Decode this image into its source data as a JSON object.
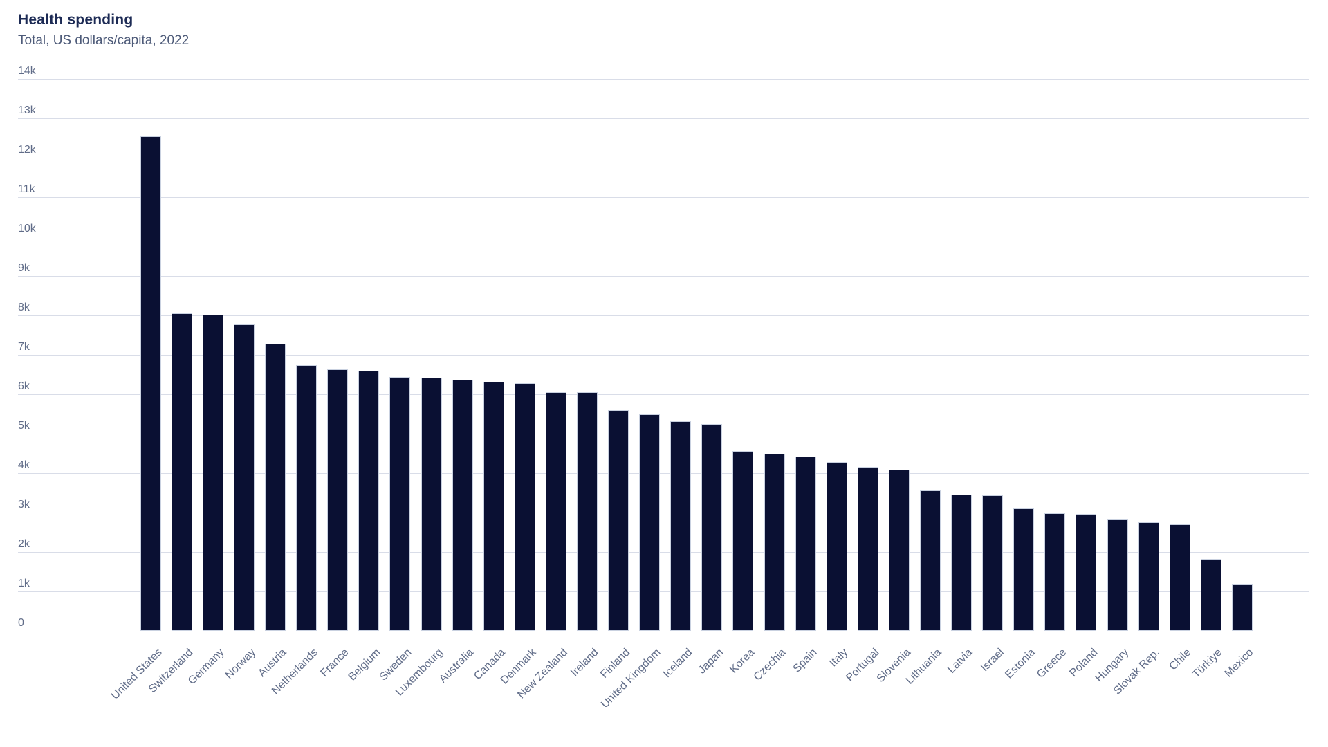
{
  "chart_data": {
    "type": "bar",
    "title": "Health spending",
    "subtitle": "Total, US dollars/capita, 2022",
    "xlabel": "",
    "ylabel": "US dollars/capita",
    "ylim": [
      0,
      14000
    ],
    "grid": true,
    "legend": false,
    "y_tick_labels": [
      "0",
      "1k",
      "2k",
      "3k",
      "4k",
      "5k",
      "6k",
      "7k",
      "8k",
      "9k",
      "10k",
      "11k",
      "12k",
      "13k",
      "14k"
    ],
    "categories": [
      "United States",
      "Switzerland",
      "Germany",
      "Norway",
      "Austria",
      "Netherlands",
      "France",
      "Belgium",
      "Sweden",
      "Luxembourg",
      "Australia",
      "Canada",
      "Denmark",
      "New Zealand",
      "Ireland",
      "Finland",
      "United Kingdom",
      "Iceland",
      "Japan",
      "Korea",
      "Czechia",
      "Spain",
      "Italy",
      "Portugal",
      "Slovenia",
      "Lithuania",
      "Latvia",
      "Israel",
      "Estonia",
      "Greece",
      "Poland",
      "Hungary",
      "Slovak Rep.",
      "Chile",
      "Türkiye",
      "Mexico"
    ],
    "values": [
      12540,
      8050,
      8010,
      7770,
      7280,
      6730,
      6630,
      6600,
      6440,
      6430,
      6370,
      6320,
      6280,
      6060,
      6050,
      5600,
      5490,
      5310,
      5250,
      4570,
      4500,
      4430,
      4290,
      4160,
      4090,
      3570,
      3450,
      3440,
      3110,
      2990,
      2960,
      2820,
      2760,
      2700,
      1830,
      1180
    ],
    "colors": {
      "bar": "#0a1033",
      "bar_border": "#c9d1e0",
      "grid": "#d9dde8",
      "title": "#1d2b55",
      "subtitle": "#4e5b79",
      "tick_label": "#606c88",
      "background": "#ffffff"
    }
  }
}
